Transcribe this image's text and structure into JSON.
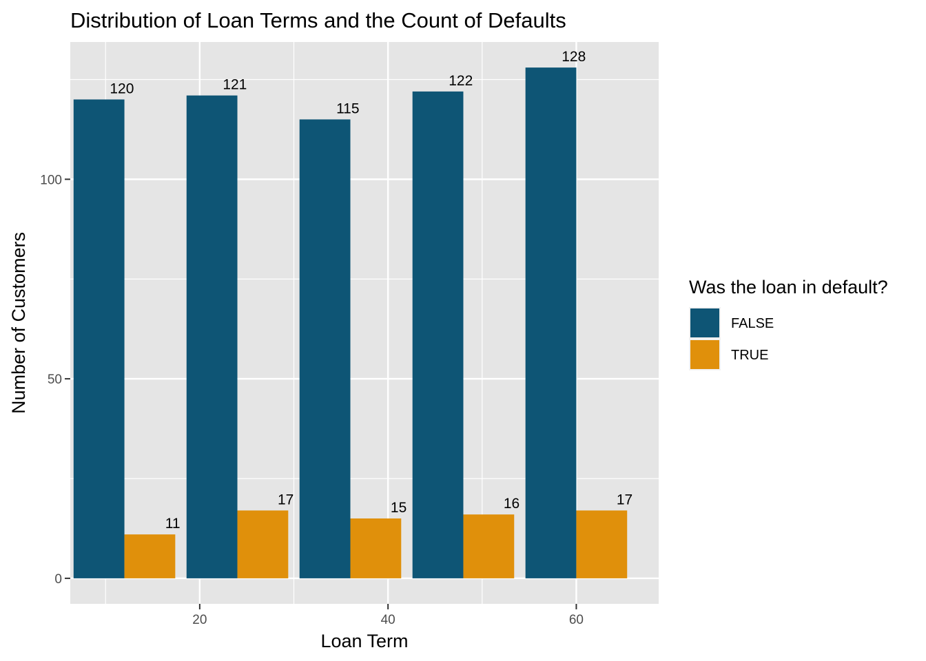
{
  "chart_data": {
    "type": "bar",
    "title": "Distribution of Loan Terms and the Count of Defaults",
    "xlabel": "Loan Term",
    "ylabel": "Number of Customers",
    "x_ticks": [
      20,
      40,
      60
    ],
    "y_ticks": [
      0,
      50,
      100
    ],
    "xlim": [
      6.25,
      68.75
    ],
    "ylim": [
      -6.4,
      134.4
    ],
    "grid": true,
    "categories": [
      12,
      24,
      36,
      48,
      60
    ],
    "series": [
      {
        "name": "FALSE",
        "color": "#0e5575",
        "values": [
          120,
          121,
          115,
          122,
          128
        ]
      },
      {
        "name": "TRUE",
        "color": "#e0900b",
        "values": [
          11,
          17,
          15,
          16,
          17
        ]
      }
    ],
    "legend": {
      "title": "Was the loan in default?",
      "position": "right"
    },
    "panel_background": "#e5e5e5"
  }
}
